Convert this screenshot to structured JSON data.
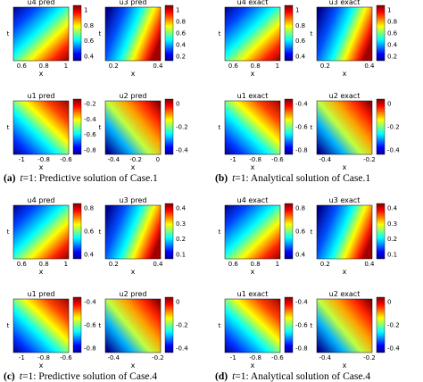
{
  "panels": [
    {
      "label": "(a)",
      "var": "t",
      "text": "=1: Predictive solution of Case.1",
      "plots": [
        {
          "title": "u4 pred",
          "ylabel": "t",
          "xlabel": "x",
          "xticks": [
            0.6,
            0.8,
            1
          ],
          "cbticks": [
            1,
            0.8,
            0.6,
            0.4
          ]
        },
        {
          "title": "u3 pred",
          "ylabel": "t",
          "xlabel": "x",
          "xticks": [
            0.2,
            0.4
          ],
          "cbticks": [
            1,
            0.8,
            0.6,
            0.4,
            0.2
          ]
        },
        {
          "title": "u1 pred",
          "ylabel": "t",
          "xlabel": "x",
          "xticks": [
            -1,
            -0.8,
            -0.6
          ],
          "cbticks": [
            -0.2,
            -0.4,
            -0.6,
            -0.8
          ]
        },
        {
          "title": "u2 pred",
          "ylabel": "t",
          "xlabel": "x",
          "xticks": [
            -0.4,
            -0.2,
            0
          ],
          "cbticks": [
            0,
            -0.2,
            -0.4
          ]
        }
      ]
    },
    {
      "label": "(b)",
      "var": "t",
      "text": "=1: Analytical solution of Case.1",
      "plots": [
        {
          "title": "u4 exact",
          "ylabel": "t",
          "xlabel": "x",
          "xticks": [
            0.6,
            0.8,
            1
          ],
          "cbticks": [
            1,
            0.8,
            0.6,
            0.4
          ]
        },
        {
          "title": "u3 exact",
          "ylabel": "t",
          "xlabel": "x",
          "xticks": [
            0.2,
            0.4
          ],
          "cbticks": [
            1,
            0.8,
            0.6,
            0.4,
            0.2
          ]
        },
        {
          "title": "u1 exact",
          "ylabel": "t",
          "xlabel": "x",
          "xticks": [
            -1,
            -0.8,
            -0.6
          ],
          "cbticks": [
            -0.4,
            -0.6,
            -0.8
          ]
        },
        {
          "title": "u2 exact",
          "ylabel": "t",
          "xlabel": "x",
          "xticks": [
            -0.4,
            -0.2
          ],
          "cbticks": [
            0,
            -0.2,
            -0.4
          ]
        }
      ]
    },
    {
      "label": "(c)",
      "var": "t",
      "text": "=1: Predictive solution of Case.4",
      "plots": [
        {
          "title": "u4 pred",
          "ylabel": "t",
          "xlabel": "x",
          "xticks": [
            0.6,
            0.8,
            1
          ],
          "cbticks": [
            0.8,
            0.6,
            0.4
          ]
        },
        {
          "title": "u3 pred",
          "ylabel": "t",
          "xlabel": "x",
          "xticks": [
            0.2,
            0.4
          ],
          "cbticks": [
            0.4,
            0.3,
            0.2,
            0.1
          ]
        },
        {
          "title": "u1 pred",
          "ylabel": "t",
          "xlabel": "x",
          "xticks": [
            -1,
            -0.8,
            -0.6
          ],
          "cbticks": [
            -0.4,
            -0.6,
            -0.8
          ]
        },
        {
          "title": "u2 pred",
          "ylabel": "t",
          "xlabel": "x",
          "xticks": [
            -0.4,
            -0.2
          ],
          "cbticks": [
            0,
            -0.2,
            -0.4
          ]
        }
      ]
    },
    {
      "label": "(d)",
      "var": "t",
      "text": "=1: Analytical solution of Case.4",
      "plots": [
        {
          "title": "u4 exact",
          "ylabel": "t",
          "xlabel": "x",
          "xticks": [
            0.6,
            0.8,
            1
          ],
          "cbticks": [
            0.8,
            0.6,
            0.4
          ]
        },
        {
          "title": "u3 exact",
          "ylabel": "t",
          "xlabel": "x",
          "xticks": [
            0.2,
            0.4
          ],
          "cbticks": [
            0.4,
            0.3,
            0.2,
            0.1
          ]
        },
        {
          "title": "u1 exact",
          "ylabel": "t",
          "xlabel": "x",
          "xticks": [
            -1,
            -0.8,
            -0.6
          ],
          "cbticks": [
            -0.4,
            -0.6,
            -0.8
          ]
        },
        {
          "title": "u2 exact",
          "ylabel": "t",
          "xlabel": "x",
          "xticks": [
            -0.4,
            -0.2
          ],
          "cbticks": [
            0,
            -0.2,
            -0.4
          ]
        }
      ]
    }
  ]
}
